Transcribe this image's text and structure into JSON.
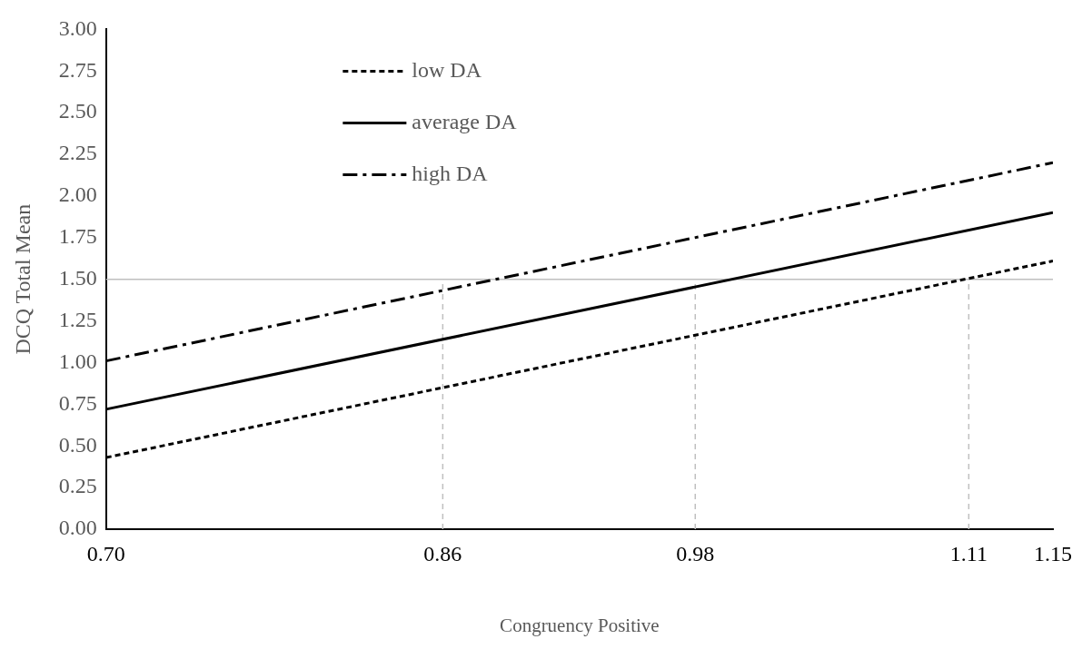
{
  "chart_data": {
    "type": "line",
    "xlabel": "Congruency Positive",
    "ylabel": "DCQ Total Mean",
    "x": [
      0.7,
      1.15
    ],
    "series": [
      {
        "name": "low DA",
        "color": "#000000",
        "line_style": "dotted",
        "values": [
          0.43,
          1.61
        ]
      },
      {
        "name": "average DA",
        "color": "#000000",
        "line_style": "solid",
        "values": [
          0.72,
          1.9
        ]
      },
      {
        "name": "high DA",
        "color": "#000000",
        "line_style": "dashed",
        "values": [
          1.01,
          2.2
        ]
      }
    ],
    "xlim": [
      0.7,
      1.15
    ],
    "xticks": [
      {
        "value": 0.7,
        "label": "0.70"
      },
      {
        "value": 0.86,
        "label": "0.86"
      },
      {
        "value": 0.98,
        "label": "0.98"
      },
      {
        "value": 1.11,
        "label": "1.11"
      },
      {
        "value": 1.15,
        "label": "1.15"
      }
    ],
    "ylim": [
      0,
      3
    ],
    "yticks": [
      {
        "value": 0,
        "label": "0.00"
      },
      {
        "value": 0.25,
        "label": "0.25"
      },
      {
        "value": 0.5,
        "label": "0.50"
      },
      {
        "value": 0.75,
        "label": "0.75"
      },
      {
        "value": 1,
        "label": "1.00"
      },
      {
        "value": 1.25,
        "label": "1.25"
      },
      {
        "value": 1.5,
        "label": "1.50"
      },
      {
        "value": 1.75,
        "label": "1.75"
      },
      {
        "value": 2,
        "label": "2.00"
      },
      {
        "value": 2.25,
        "label": "2.25"
      },
      {
        "value": 2.5,
        "label": "2.50"
      },
      {
        "value": 2.75,
        "label": "2.75"
      },
      {
        "value": 3,
        "label": "3.00"
      }
    ],
    "ref_lines": [
      {
        "axis": "y",
        "value": 1.5,
        "color": "#bfbfbf",
        "line_style": "solid"
      },
      {
        "axis": "x",
        "value": 0.86,
        "color": "#bfbfbf",
        "line_style": "dashed"
      },
      {
        "axis": "x",
        "value": 0.98,
        "color": "#bfbfbf",
        "line_style": "dashed"
      },
      {
        "axis": "x",
        "value": 1.11,
        "color": "#bfbfbf",
        "line_style": "dashed"
      }
    ],
    "grid": false,
    "legend": "top left",
    "marker": "none"
  }
}
